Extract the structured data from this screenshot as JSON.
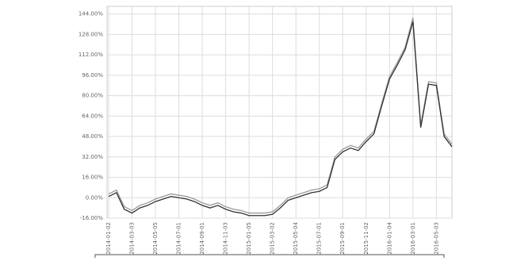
{
  "chart_data": {
    "type": "line",
    "categories": [
      "2014-01-02",
      null,
      null,
      "2014-03-03",
      null,
      null,
      "2014-05-05",
      null,
      null,
      "2014-07-01",
      null,
      null,
      "2014-09-01",
      null,
      null,
      "2014-11-03",
      null,
      null,
      "2015-01-05",
      null,
      null,
      "2015-03-02",
      null,
      null,
      "2015-05-04",
      null,
      null,
      "2015-07-01",
      null,
      null,
      "2015-09-01",
      null,
      null,
      "2015-11-02",
      null,
      null,
      "2016-01-04",
      null,
      null,
      "2016-03-01",
      null,
      null,
      "2016-05-03",
      null,
      null
    ],
    "series": [
      {
        "color": "#333333",
        "values": [
          1,
          4,
          -9,
          -12,
          -8,
          -6,
          -3,
          -1,
          1,
          0,
          -1,
          -3,
          -6,
          -8,
          -6,
          -9,
          -11,
          -12,
          -14,
          -14,
          -14,
          -13,
          -8,
          -2,
          0,
          2,
          4,
          5,
          8,
          30,
          36,
          39,
          37,
          44,
          50,
          72,
          93,
          104,
          116,
          138,
          55,
          89,
          88,
          48,
          40
        ]
      },
      {
        "color": "#999999",
        "values": [
          3,
          6,
          -7,
          -10,
          -6,
          -4,
          -1,
          1,
          3,
          2,
          1,
          -1,
          -4,
          -6,
          -4,
          -7,
          -9,
          -10,
          -12,
          -12,
          -12,
          -11,
          -6,
          0,
          2,
          4,
          6,
          7,
          10,
          32,
          38,
          41,
          39,
          46,
          52,
          74,
          95,
          106,
          118,
          141,
          57,
          91,
          90,
          50,
          42
        ]
      }
    ],
    "ylim": [
      -16,
      150
    ],
    "yticks": [
      {
        "value": -16,
        "label": "-16.00%"
      },
      {
        "value": 0,
        "label": "0.00%"
      },
      {
        "value": 16,
        "label": "16.00%"
      },
      {
        "value": 32,
        "label": "32.00%"
      },
      {
        "value": 48,
        "label": "48.00%"
      },
      {
        "value": 64,
        "label": "64.00%"
      },
      {
        "value": 80,
        "label": "80.00%"
      },
      {
        "value": 96,
        "label": "96.00%"
      },
      {
        "value": 112,
        "label": "112.00%"
      },
      {
        "value": 128,
        "label": "128.00%"
      },
      {
        "value": 144,
        "label": "144.00%"
      }
    ],
    "grid": true
  }
}
